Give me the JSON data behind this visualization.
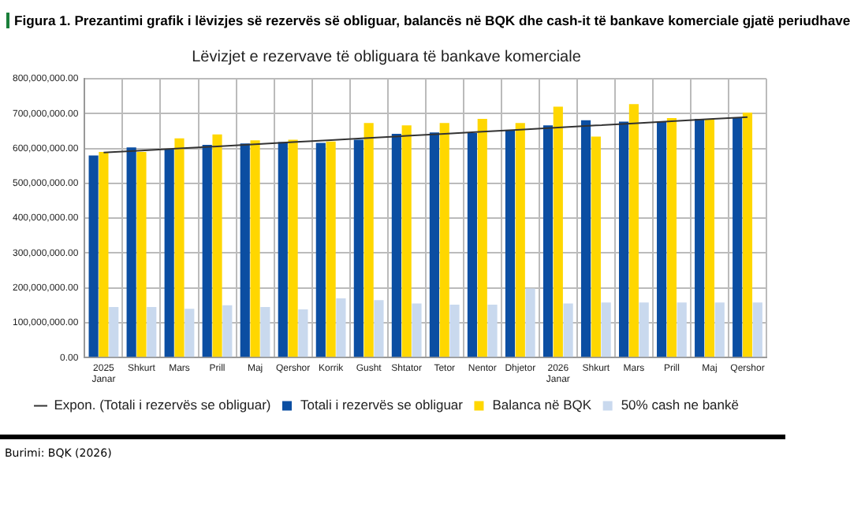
{
  "chart_data": {
    "type": "bar",
    "title": "Figura 1. Prezantimi grafik i lëvizjes së rezervës së obliguar, balancës në BQK dhe cash-it të bankave komerciale gjatë periudhave",
    "subtitle": "Lëvizjet e rezervave të obliguara të bankave komerciale",
    "categories": [
      "2025\nJanar",
      "Shkurt",
      "Mars",
      "Prill",
      "Maj",
      "Qershor",
      "Korrik",
      "Gusht",
      "Shtator",
      "Tetor",
      "Nentor",
      "Dhjetor",
      "2026\nJanar",
      "Shkurt",
      "Mars",
      "Prill",
      "Maj",
      "Qershor"
    ],
    "series": [
      {
        "name": "Totali i rezervës se obliguar",
        "color": "#0b4ea2",
        "values": [
          580000000,
          603000000,
          597000000,
          610000000,
          614000000,
          618000000,
          616000000,
          625000000,
          642000000,
          646000000,
          644000000,
          653000000,
          666000000,
          681000000,
          677000000,
          677000000,
          685000000,
          688000000
        ]
      },
      {
        "name": "Balanca në BQK",
        "color": "#ffd700",
        "values": [
          590000000,
          590000000,
          629000000,
          640000000,
          623000000,
          625000000,
          620000000,
          673000000,
          666000000,
          673000000,
          685000000,
          673000000,
          720000000,
          634000000,
          727000000,
          687000000,
          685000000,
          703000000
        ]
      },
      {
        "name": "50% cash ne bankë",
        "color": "#c9d9ee",
        "values": [
          145000000,
          145000000,
          140000000,
          150000000,
          145000000,
          138000000,
          170000000,
          165000000,
          155000000,
          152000000,
          152000000,
          198000000,
          155000000,
          158000000,
          158000000,
          158000000,
          158000000,
          158000000
        ]
      },
      {
        "name": "Expon. (Totali i rezervës se obliguar)",
        "type": "line",
        "color": "#333333",
        "marker": "none",
        "values": [
          588000000,
          594000000,
          600000000,
          606000000,
          612000000,
          618000000,
          624000000,
          630000000,
          636000000,
          642000000,
          648000000,
          654000000,
          660000000,
          666000000,
          672000000,
          678000000,
          684000000,
          690000000
        ]
      }
    ],
    "ylim": [
      0,
      800000000
    ],
    "yticks": [
      {
        "value": 0,
        "label": "0.00"
      },
      {
        "value": 100000000,
        "label": "100,000,000.00"
      },
      {
        "value": 200000000,
        "label": "200,000,000.00"
      },
      {
        "value": 300000000,
        "label": "300,000,000.00"
      },
      {
        "value": 400000000,
        "label": "400,000,000.00"
      },
      {
        "value": 500000000,
        "label": "500,000,000.00"
      },
      {
        "value": 600000000,
        "label": "600,000,000.00"
      },
      {
        "value": 700000000,
        "label": "700,000,000.00"
      },
      {
        "value": 800000000,
        "label": "800,000,000.00"
      }
    ],
    "grid": true,
    "legend": "bottom",
    "annotations": [
      "Burimi: BQK (2026)"
    ]
  }
}
